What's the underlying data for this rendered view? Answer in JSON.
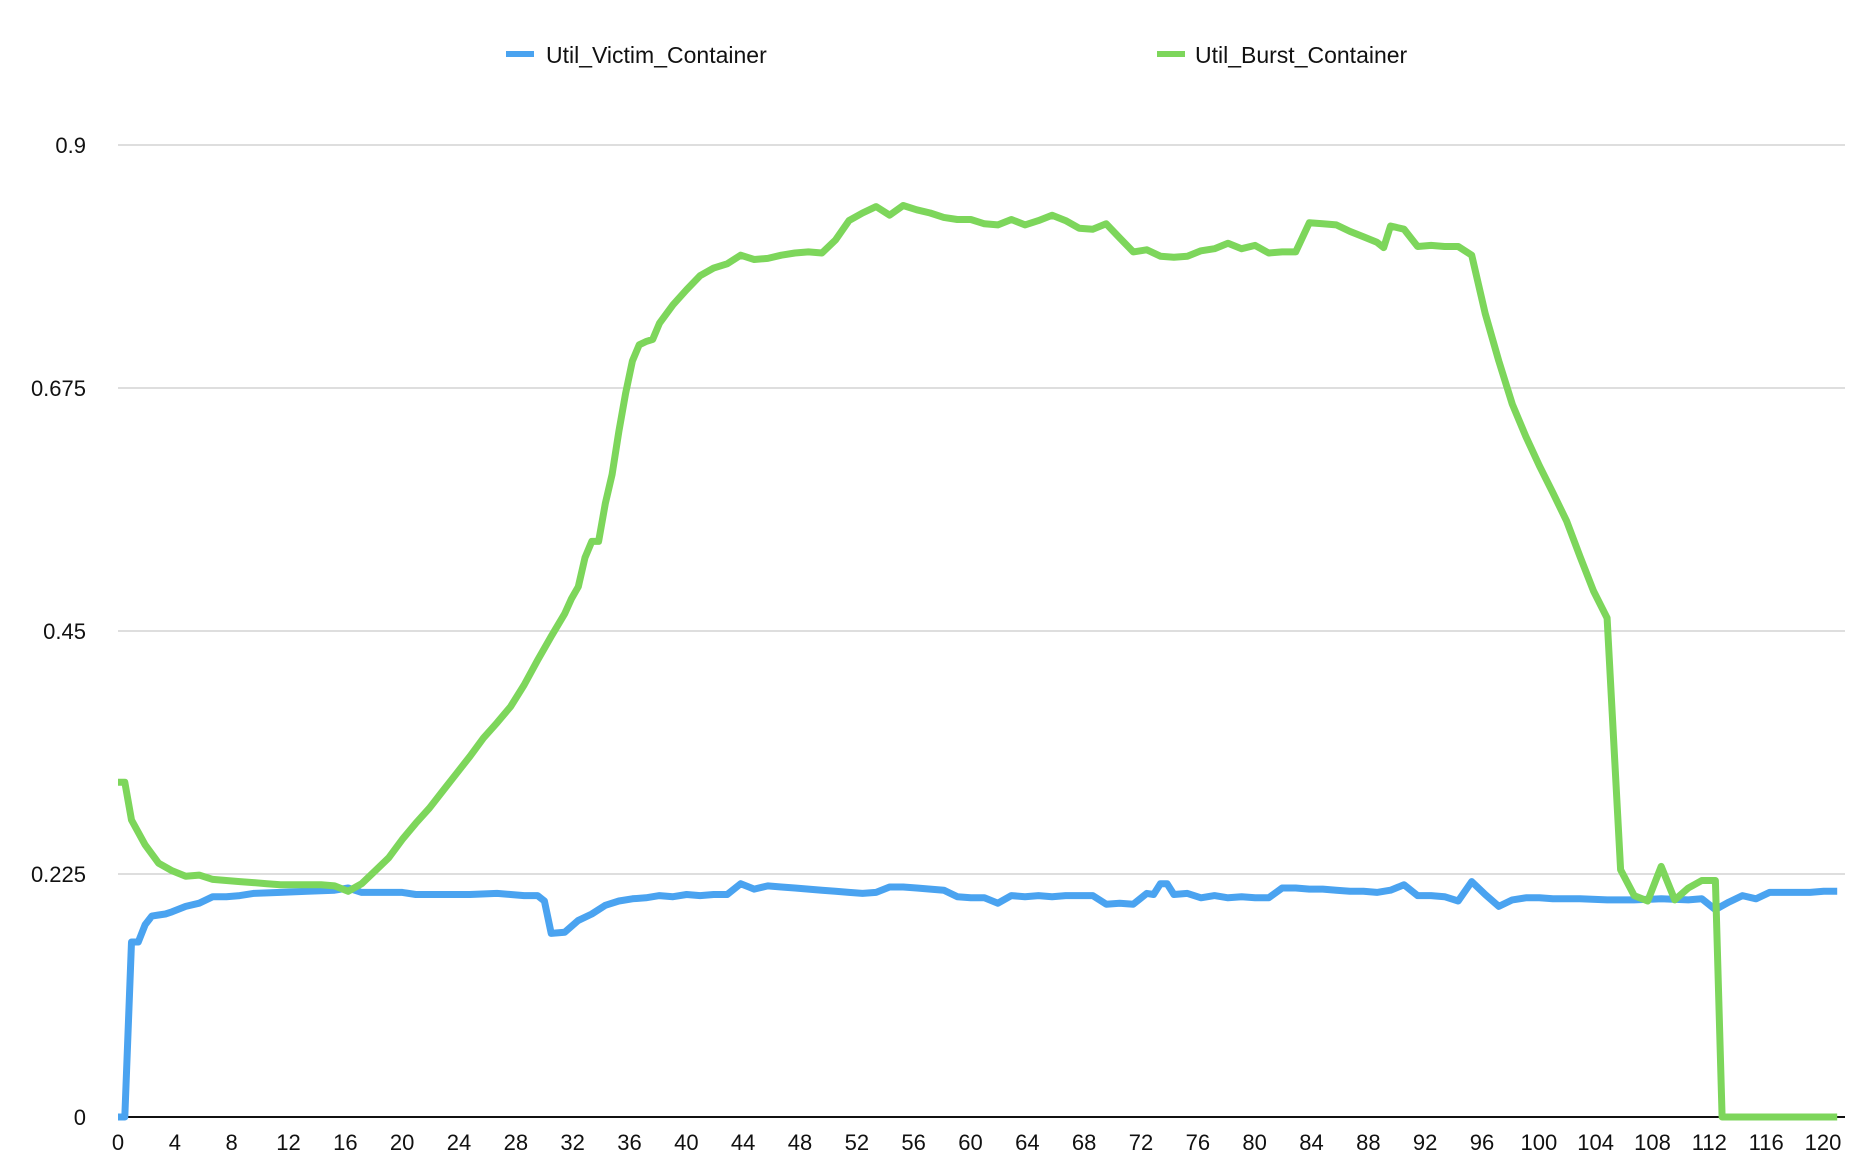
{
  "chart_data": {
    "type": "line",
    "title": "",
    "xlabel": "",
    "ylabel": "",
    "xlim": [
      0,
      121
    ],
    "ylim": [
      0,
      0.9
    ],
    "x_ticks": [
      0,
      4,
      8,
      12,
      16,
      20,
      24,
      28,
      32,
      36,
      40,
      44,
      48,
      52,
      56,
      60,
      64,
      68,
      72,
      76,
      80,
      84,
      88,
      92,
      96,
      100,
      104,
      108,
      112,
      116,
      120
    ],
    "y_ticks": [
      0,
      0.225,
      0.45,
      0.675,
      0.9
    ],
    "y_tick_labels": [
      "0",
      "0.225",
      "0.45",
      "0.675",
      "0.9"
    ],
    "grid": "horizontal",
    "legend_position": "top",
    "series": [
      {
        "name": "Util_Victim_Container",
        "color": "#4aa3f0",
        "points": [
          [
            0,
            0
          ],
          [
            0.5,
            0
          ],
          [
            1,
            0.162
          ],
          [
            1.5,
            0.162
          ],
          [
            2,
            0.178
          ],
          [
            2.5,
            0.186
          ],
          [
            3,
            0.187
          ],
          [
            3.5,
            0.188
          ],
          [
            4,
            0.19
          ],
          [
            5,
            0.195
          ],
          [
            6,
            0.198
          ],
          [
            7,
            0.204
          ],
          [
            8,
            0.204
          ],
          [
            9,
            0.205
          ],
          [
            10,
            0.207
          ],
          [
            12,
            0.208
          ],
          [
            14,
            0.209
          ],
          [
            16,
            0.21
          ],
          [
            17,
            0.212
          ],
          [
            18,
            0.208
          ],
          [
            20,
            0.208
          ],
          [
            21,
            0.208
          ],
          [
            22,
            0.206
          ],
          [
            24,
            0.206
          ],
          [
            26,
            0.206
          ],
          [
            28,
            0.207
          ],
          [
            29,
            0.206
          ],
          [
            30,
            0.205
          ],
          [
            31,
            0.205
          ],
          [
            31.5,
            0.2
          ],
          [
            32,
            0.17
          ],
          [
            33,
            0.171
          ],
          [
            34,
            0.182
          ],
          [
            35,
            0.188
          ],
          [
            36,
            0.196
          ],
          [
            37,
            0.2
          ],
          [
            38,
            0.202
          ],
          [
            39,
            0.203
          ],
          [
            40,
            0.205
          ],
          [
            41,
            0.204
          ],
          [
            42,
            0.206
          ],
          [
            43,
            0.205
          ],
          [
            44,
            0.206
          ],
          [
            45,
            0.206
          ],
          [
            46,
            0.216
          ],
          [
            47,
            0.211
          ],
          [
            48,
            0.214
          ],
          [
            49,
            0.213
          ],
          [
            50,
            0.212
          ],
          [
            51,
            0.211
          ],
          [
            52,
            0.21
          ],
          [
            53,
            0.209
          ],
          [
            54,
            0.208
          ],
          [
            55,
            0.207
          ],
          [
            56,
            0.208
          ],
          [
            57,
            0.213
          ],
          [
            58,
            0.213
          ],
          [
            59,
            0.212
          ],
          [
            60,
            0.211
          ],
          [
            61,
            0.21
          ],
          [
            62,
            0.204
          ],
          [
            63,
            0.203
          ],
          [
            64,
            0.203
          ],
          [
            65,
            0.198
          ],
          [
            66,
            0.205
          ],
          [
            67,
            0.204
          ],
          [
            68,
            0.205
          ],
          [
            69,
            0.204
          ],
          [
            70,
            0.205
          ],
          [
            71,
            0.205
          ],
          [
            72,
            0.205
          ],
          [
            73,
            0.197
          ],
          [
            74,
            0.198
          ],
          [
            75,
            0.197
          ],
          [
            76,
            0.207
          ],
          [
            76.5,
            0.206
          ],
          [
            77,
            0.216
          ],
          [
            77.5,
            0.216
          ],
          [
            78,
            0.206
          ],
          [
            79,
            0.207
          ],
          [
            80,
            0.203
          ],
          [
            81,
            0.205
          ],
          [
            82,
            0.203
          ],
          [
            83,
            0.204
          ],
          [
            84,
            0.203
          ],
          [
            85,
            0.203
          ],
          [
            86,
            0.212
          ],
          [
            87,
            0.212
          ],
          [
            88,
            0.211
          ],
          [
            89,
            0.211
          ],
          [
            90,
            0.21
          ],
          [
            91,
            0.209
          ],
          [
            92,
            0.209
          ],
          [
            93,
            0.208
          ],
          [
            94,
            0.21
          ],
          [
            95,
            0.215
          ],
          [
            96,
            0.205
          ],
          [
            97,
            0.205
          ],
          [
            98,
            0.204
          ],
          [
            99,
            0.2
          ],
          [
            100,
            0.218
          ],
          [
            101,
            0.206
          ],
          [
            102,
            0.195
          ],
          [
            103,
            0.201
          ],
          [
            104,
            0.203
          ],
          [
            105,
            0.203
          ],
          [
            106,
            0.202
          ],
          [
            108,
            0.202
          ],
          [
            110,
            0.201
          ],
          [
            112,
            0.201
          ],
          [
            114,
            0.202
          ],
          [
            116,
            0.201
          ],
          [
            117,
            0.202
          ],
          [
            118,
            0.192
          ],
          [
            119,
            0.199
          ],
          [
            120,
            0.205
          ],
          [
            121,
            0.202
          ],
          [
            122,
            0.208
          ],
          [
            123,
            0.208
          ],
          [
            124,
            0.208
          ],
          [
            125,
            0.208
          ],
          [
            126,
            0.209
          ],
          [
            127,
            0.209
          ]
        ]
      },
      {
        "name": "Util_Burst_Container",
        "color": "#7dd65b",
        "points": [
          [
            0,
            0.31
          ],
          [
            0.5,
            0.31
          ],
          [
            1,
            0.275
          ],
          [
            2,
            0.252
          ],
          [
            3,
            0.235
          ],
          [
            4,
            0.228
          ],
          [
            5,
            0.223
          ],
          [
            6,
            0.224
          ],
          [
            7,
            0.22
          ],
          [
            8,
            0.219
          ],
          [
            9,
            0.218
          ],
          [
            10,
            0.217
          ],
          [
            11,
            0.216
          ],
          [
            12,
            0.215
          ],
          [
            13,
            0.215
          ],
          [
            14,
            0.215
          ],
          [
            15,
            0.215
          ],
          [
            16,
            0.214
          ],
          [
            17,
            0.209
          ],
          [
            18,
            0.216
          ],
          [
            19,
            0.228
          ],
          [
            20,
            0.24
          ],
          [
            21,
            0.257
          ],
          [
            22,
            0.272
          ],
          [
            23,
            0.286
          ],
          [
            24,
            0.302
          ],
          [
            25,
            0.318
          ],
          [
            26,
            0.334
          ],
          [
            27,
            0.351
          ],
          [
            28,
            0.365
          ],
          [
            29,
            0.38
          ],
          [
            30,
            0.4
          ],
          [
            31,
            0.423
          ],
          [
            32,
            0.445
          ],
          [
            33,
            0.466
          ],
          [
            33.5,
            0.48
          ],
          [
            34,
            0.491
          ],
          [
            34.5,
            0.518
          ],
          [
            35,
            0.533
          ],
          [
            35.5,
            0.533
          ],
          [
            36,
            0.568
          ],
          [
            36.5,
            0.595
          ],
          [
            37,
            0.635
          ],
          [
            37.5,
            0.67
          ],
          [
            38,
            0.7
          ],
          [
            38.5,
            0.715
          ],
          [
            39,
            0.718
          ],
          [
            39.5,
            0.72
          ],
          [
            40,
            0.735
          ],
          [
            41,
            0.752
          ],
          [
            42,
            0.766
          ],
          [
            43,
            0.779
          ],
          [
            44,
            0.786
          ],
          [
            45,
            0.79
          ],
          [
            46,
            0.798
          ],
          [
            47,
            0.794
          ],
          [
            48,
            0.795
          ],
          [
            49,
            0.798
          ],
          [
            50,
            0.8
          ],
          [
            51,
            0.801
          ],
          [
            52,
            0.8
          ],
          [
            53,
            0.812
          ],
          [
            54,
            0.83
          ],
          [
            55,
            0.837
          ],
          [
            56,
            0.843
          ],
          [
            57,
            0.835
          ],
          [
            58,
            0.844
          ],
          [
            59,
            0.84
          ],
          [
            60,
            0.837
          ],
          [
            61,
            0.833
          ],
          [
            62,
            0.831
          ],
          [
            63,
            0.831
          ],
          [
            64,
            0.827
          ],
          [
            65,
            0.826
          ],
          [
            66,
            0.831
          ],
          [
            67,
            0.826
          ],
          [
            68,
            0.83
          ],
          [
            69,
            0.835
          ],
          [
            70,
            0.83
          ],
          [
            71,
            0.823
          ],
          [
            72,
            0.822
          ],
          [
            73,
            0.827
          ],
          [
            74,
            0.814
          ],
          [
            75,
            0.801
          ],
          [
            76,
            0.803
          ],
          [
            77,
            0.797
          ],
          [
            78,
            0.796
          ],
          [
            79,
            0.797
          ],
          [
            80,
            0.802
          ],
          [
            81,
            0.804
          ],
          [
            82,
            0.809
          ],
          [
            83,
            0.804
          ],
          [
            84,
            0.807
          ],
          [
            85,
            0.8
          ],
          [
            86,
            0.801
          ],
          [
            87,
            0.801
          ],
          [
            88,
            0.828
          ],
          [
            89,
            0.827
          ],
          [
            90,
            0.826
          ],
          [
            91,
            0.82
          ],
          [
            92,
            0.815
          ],
          [
            93,
            0.81
          ],
          [
            93.5,
            0.805
          ],
          [
            94,
            0.825
          ],
          [
            95,
            0.822
          ],
          [
            96,
            0.806
          ],
          [
            97,
            0.807
          ],
          [
            98,
            0.806
          ],
          [
            99,
            0.806
          ],
          [
            100,
            0.798
          ],
          [
            101,
            0.744
          ],
          [
            102,
            0.7
          ],
          [
            103,
            0.66
          ],
          [
            104,
            0.63
          ],
          [
            105,
            0.603
          ],
          [
            106,
            0.578
          ],
          [
            107,
            0.552
          ],
          [
            108,
            0.519
          ],
          [
            109,
            0.487
          ],
          [
            110,
            0.462
          ],
          [
            111,
            0.229
          ],
          [
            112,
            0.205
          ],
          [
            113,
            0.2
          ],
          [
            114,
            0.232
          ],
          [
            115,
            0.201
          ],
          [
            116,
            0.212
          ],
          [
            117,
            0.219
          ],
          [
            118,
            0.219
          ],
          [
            118.5,
            0
          ],
          [
            127,
            0
          ]
        ]
      }
    ]
  }
}
